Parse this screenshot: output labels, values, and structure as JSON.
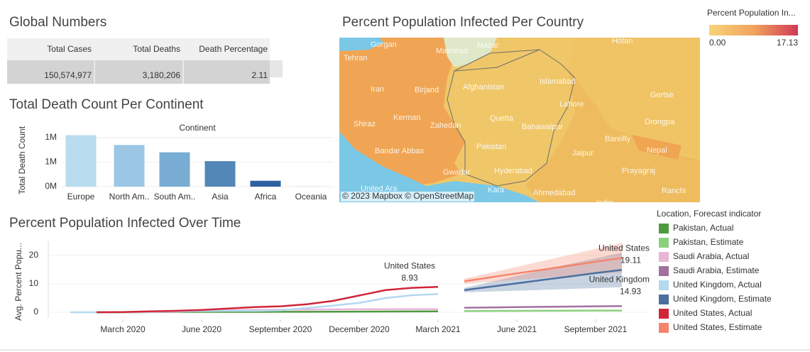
{
  "global_numbers": {
    "title": "Global Numbers",
    "columns": [
      "Total Cases",
      "Total Deaths",
      "Death Percentage"
    ],
    "rows": [
      [
        "150,574,977",
        "3,180,206",
        "2.11"
      ]
    ]
  },
  "map": {
    "title": "Percent Population Infected Per Country",
    "legend_title": "Percent Population In...",
    "legend_labels": [
      "0.00",
      "17.13"
    ],
    "attribution": "© 2023 Mapbox © OpenStreetMap",
    "places": [
      "Gorgan",
      "Mashhad",
      "Mazar",
      "Hotan",
      "Tehran",
      "Iran",
      "Birjand",
      "Afghanistan",
      "Islamabad",
      "Gertse",
      "Lahore",
      "Kerman",
      "Zahedan",
      "Quetta",
      "Bahawalpur",
      "Drongpa",
      "Bareilly",
      "Shiraz",
      "Pakistan",
      "Jaipur",
      "Nepal",
      "Bandar Abbas",
      "Hyderabad",
      "Prayagraj",
      "Gwadar",
      "Kara",
      "Ahmedabad",
      "Ranchi",
      "United Ara",
      "India"
    ]
  },
  "chart_data": [
    {
      "type": "bar",
      "title": "Total Death Count Per Continent",
      "x_header": "Continent",
      "y_label": "Total Death Count",
      "categories": [
        "Europe",
        "North Am..",
        "South Am..",
        "Asia",
        "Africa",
        "Oceania"
      ],
      "values": [
        1050000,
        850000,
        700000,
        520000,
        120000,
        1000
      ],
      "colors": [
        "#b9dcef",
        "#9bc7e4",
        "#78acd2",
        "#5287b8",
        "#2f609f",
        "#1f4a8a"
      ],
      "ylim": [
        0,
        1100000
      ],
      "yticks": [
        {
          "value": 0,
          "label": "0M"
        },
        {
          "value": 500000,
          "label": "1M"
        },
        {
          "value": 1000000,
          "label": "1M"
        }
      ],
      "grid": true
    },
    {
      "type": "line",
      "title": "Percent Population Infected Over Time",
      "y_label": "Avg. Percent Popu...",
      "legend_title": "Location, Forecast indicator",
      "x": [
        "2020-01",
        "2020-02",
        "2020-03",
        "2020-04",
        "2020-05",
        "2020-06",
        "2020-07",
        "2020-08",
        "2020-09",
        "2020-10",
        "2020-11",
        "2020-12",
        "2021-01",
        "2021-02",
        "2021-03",
        "2021-04",
        "2021-05",
        "2021-06",
        "2021-07",
        "2021-08",
        "2021-09",
        "2021-10"
      ],
      "xlim": [
        "2019-12",
        "2021-11"
      ],
      "xticks": [
        {
          "value": "2020-03",
          "label": "March 2020"
        },
        {
          "value": "2020-06",
          "label": "June 2020"
        },
        {
          "value": "2020-09",
          "label": "September 2020"
        },
        {
          "value": "2020-12",
          "label": "December 2020"
        },
        {
          "value": "2021-03",
          "label": "March 2021"
        },
        {
          "value": "2021-06",
          "label": "June 2021"
        },
        {
          "value": "2021-09",
          "label": "September 2021"
        }
      ],
      "ylim": [
        -2,
        25
      ],
      "yticks": [
        0,
        10,
        20
      ],
      "grid": true,
      "series": [
        {
          "name": "Pakistan, Actual",
          "color": "#4e9a3f",
          "values": [
            null,
            0,
            0.01,
            0.03,
            0.09,
            0.12,
            0.13,
            0.14,
            0.15,
            0.17,
            0.2,
            0.23,
            0.25,
            0.27,
            0.3,
            null,
            null,
            null,
            null,
            null,
            null,
            null
          ]
        },
        {
          "name": "Pakistan, Estimate",
          "color": "#8bd17c",
          "values": [
            null,
            null,
            null,
            null,
            null,
            null,
            null,
            null,
            null,
            null,
            null,
            null,
            null,
            null,
            null,
            0.45,
            0.48,
            0.5,
            0.53,
            0.55,
            0.58,
            0.6
          ]
        },
        {
          "name": "Saudi Arabia, Actual",
          "color": "#e8b6d6",
          "values": [
            null,
            null,
            0.01,
            0.05,
            0.2,
            0.5,
            0.7,
            0.85,
            0.9,
            0.95,
            1.0,
            1.05,
            1.07,
            1.09,
            1.1,
            null,
            null,
            null,
            null,
            null,
            null,
            null
          ]
        },
        {
          "name": "Saudi Arabia, Estimate",
          "color": "#a2719f",
          "values": [
            null,
            null,
            null,
            null,
            null,
            null,
            null,
            null,
            null,
            null,
            null,
            null,
            null,
            null,
            null,
            1.6,
            1.7,
            1.8,
            1.9,
            2.0,
            2.1,
            2.2
          ]
        },
        {
          "name": "United Kingdom, Actual",
          "color": "#b4d8ee",
          "values": [
            0,
            0,
            0.05,
            0.2,
            0.4,
            0.45,
            0.5,
            0.5,
            0.7,
            1.5,
            2.3,
            3.3,
            5.0,
            6.0,
            6.4,
            null,
            null,
            null,
            null,
            null,
            null,
            null
          ]
        },
        {
          "name": "United Kingdom, Estimate",
          "color": "#4c6fa0",
          "label": "United Kingdom",
          "values": [
            null,
            null,
            null,
            null,
            null,
            null,
            null,
            null,
            null,
            null,
            null,
            null,
            null,
            null,
            null,
            7.8,
            9.0,
            10.2,
            11.4,
            12.6,
            13.8,
            14.93
          ],
          "lower": [
            null,
            null,
            null,
            null,
            null,
            null,
            null,
            null,
            null,
            null,
            null,
            null,
            null,
            null,
            null,
            7.0,
            7.3,
            7.6,
            7.9,
            8.2,
            8.5,
            8.8
          ],
          "upper": [
            null,
            null,
            null,
            null,
            null,
            null,
            null,
            null,
            null,
            null,
            null,
            null,
            null,
            null,
            null,
            8.6,
            10.7,
            12.8,
            14.9,
            17.0,
            19.0,
            21.0
          ]
        },
        {
          "name": "United States, Actual",
          "color": "#d0263a",
          "label": "United States",
          "values": [
            null,
            0,
            0.06,
            0.3,
            0.5,
            0.8,
            1.3,
            1.8,
            2.1,
            2.8,
            4.0,
            5.9,
            7.8,
            8.6,
            8.93,
            null,
            null,
            null,
            null,
            null,
            null,
            null
          ]
        },
        {
          "name": "United States, Estimate",
          "color": "#f5846b",
          "label": "United States",
          "values": [
            null,
            null,
            null,
            null,
            null,
            null,
            null,
            null,
            null,
            null,
            null,
            null,
            null,
            null,
            null,
            10.9,
            12.3,
            13.7,
            15.0,
            16.4,
            17.8,
            19.11
          ],
          "lower": [
            null,
            null,
            null,
            null,
            null,
            null,
            null,
            null,
            null,
            null,
            null,
            null,
            null,
            null,
            null,
            10.0,
            10.7,
            11.4,
            12.1,
            12.8,
            13.4,
            14.0
          ],
          "upper": [
            null,
            null,
            null,
            null,
            null,
            null,
            null,
            null,
            null,
            null,
            null,
            null,
            null,
            null,
            null,
            11.8,
            13.9,
            16.0,
            18.1,
            20.2,
            22.3,
            24.5
          ]
        }
      ]
    }
  ]
}
